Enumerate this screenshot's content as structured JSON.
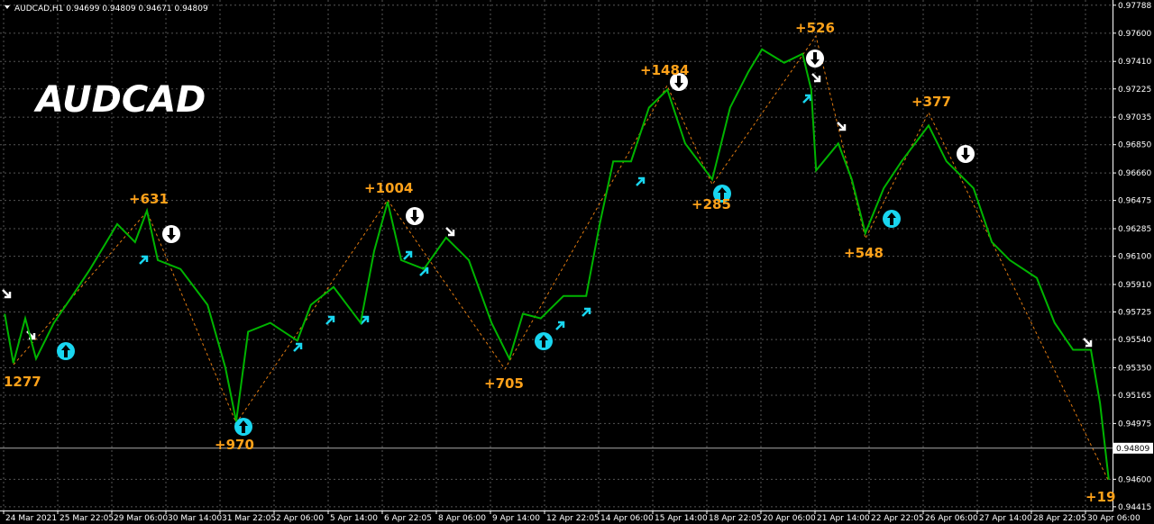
{
  "chart_data": {
    "type": "line",
    "header": "AUDCAD,H1  0.94699 0.94809 0.94671 0.94809",
    "watermark": "AUDCAD",
    "categories": [
      "24 Mar 2021",
      "25 Mar 22:05",
      "29 Mar 06:00",
      "30 Mar 14:00",
      "31 Mar 22:05",
      "2 Apr 06:00",
      "5 Apr 14:00",
      "6 Apr 22:05",
      "8 Apr 06:00",
      "9 Apr 14:00",
      "12 Apr 22:05",
      "14 Apr 06:00",
      "15 Apr 14:00",
      "18 Apr 22:05",
      "20 Apr 06:00",
      "21 Apr 14:00",
      "22 Apr 22:05",
      "26 Apr 06:00",
      "27 Apr 14:00",
      "28 Apr 22:05",
      "30 Apr 06:00"
    ],
    "xlim": [
      -0.067,
      20.5
    ],
    "ylim": [
      0.9439,
      0.97823
    ],
    "yticks": [
      0.97788,
      {
        "value": 0.976,
        "label": "0.97600"
      },
      {
        "value": 0.9741,
        "label": "0.97410"
      },
      {
        "value": 0.97225,
        "label": "0.97225"
      },
      0.97035,
      {
        "value": 0.9685,
        "label": "0.96850"
      },
      {
        "value": 0.9666,
        "label": "0.96660"
      },
      0.96475,
      0.96285,
      {
        "value": 0.961,
        "label": "0.96100"
      },
      {
        "value": 0.9591,
        "label": "0.95910"
      },
      {
        "value": 0.95725,
        "label": "0.95725"
      },
      {
        "value": 0.9554,
        "label": "0.95540"
      },
      {
        "value": 0.9535,
        "label": "0.95350"
      },
      0.95165,
      0.94975,
      {
        "value": 0.946,
        "label": "0.94600"
      },
      0.94415
    ],
    "current_price": 0.94809,
    "grid": true,
    "series": [
      {
        "color": "#00b400",
        "x": [
          0.02,
          0.18,
          0.4,
          0.6,
          0.93,
          1.27,
          1.6,
          2.1,
          2.43,
          2.65,
          2.85,
          3.27,
          3.77,
          4.1,
          4.3,
          4.52,
          4.93,
          5.43,
          5.68,
          6.1,
          6.6,
          6.85,
          7.1,
          7.35,
          7.77,
          8.18,
          8.6,
          9.02,
          9.35,
          9.6,
          9.93,
          10.35,
          10.77,
          11.02,
          11.27,
          11.6,
          11.93,
          12.27,
          12.6,
          13.1,
          13.43,
          13.77,
          14.02,
          14.43,
          14.77,
          14.93,
          15.02,
          15.43,
          15.68,
          15.93,
          16.27,
          16.6,
          17.1,
          17.43,
          17.93,
          18.27,
          18.6,
          19.1,
          19.43,
          19.77,
          20.1,
          20.27,
          20.43
        ],
        "values": [
          0.95713,
          0.95381,
          0.95682,
          0.95411,
          0.95652,
          0.95833,
          0.96014,
          0.96316,
          0.96195,
          0.96406,
          0.96074,
          0.96014,
          0.95773,
          0.95351,
          0.94989,
          0.95592,
          0.95652,
          0.95532,
          0.95773,
          0.95893,
          0.95652,
          0.96135,
          0.96466,
          0.96074,
          0.96014,
          0.96225,
          0.96074,
          0.95652,
          0.95411,
          0.95713,
          0.95682,
          0.95833,
          0.95833,
          0.96316,
          0.96738,
          0.96738,
          0.97099,
          0.9722,
          0.96858,
          0.96617,
          0.97099,
          0.97341,
          0.97491,
          0.97401,
          0.97461,
          0.9722,
          0.96677,
          0.96858,
          0.96617,
          0.96255,
          0.96557,
          0.96738,
          0.96979,
          0.96738,
          0.96557,
          0.96195,
          0.96074,
          0.95954,
          0.95652,
          0.95471,
          0.95471,
          0.95109,
          0.94597
        ]
      }
    ],
    "annotations": [
      "1277",
      "+631",
      "+970",
      "+1004",
      "+705",
      "+1484",
      "+285",
      "+526",
      "+548",
      "+377",
      "+19"
    ]
  }
}
